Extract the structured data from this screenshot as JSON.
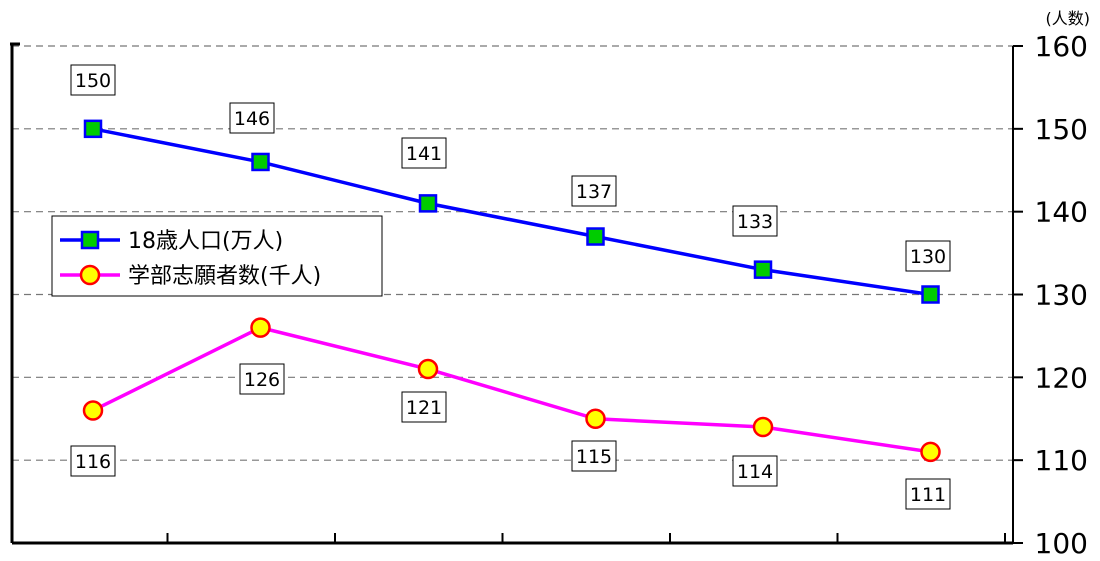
{
  "chart_data": {
    "type": "line",
    "unit_label": "(人数)",
    "ylim": [
      100,
      160
    ],
    "yticks": [
      100,
      110,
      120,
      130,
      140,
      150,
      160
    ],
    "grid": true,
    "legend_position": "left-middle",
    "x": [
      1,
      2,
      3,
      4,
      5,
      6
    ],
    "series": [
      {
        "name": "18歳人口(万人)",
        "values": [
          150,
          146,
          141,
          137,
          133,
          130
        ],
        "color": "#0000ff",
        "marker": "square",
        "marker_fill": "#00cc00"
      },
      {
        "name": "学部志願者数(千人)",
        "values": [
          116,
          126,
          121,
          115,
          114,
          111
        ],
        "color": "#ff00ff",
        "marker": "circle",
        "marker_fill": "#ffff00",
        "marker_stroke": "#ff0000"
      }
    ]
  }
}
